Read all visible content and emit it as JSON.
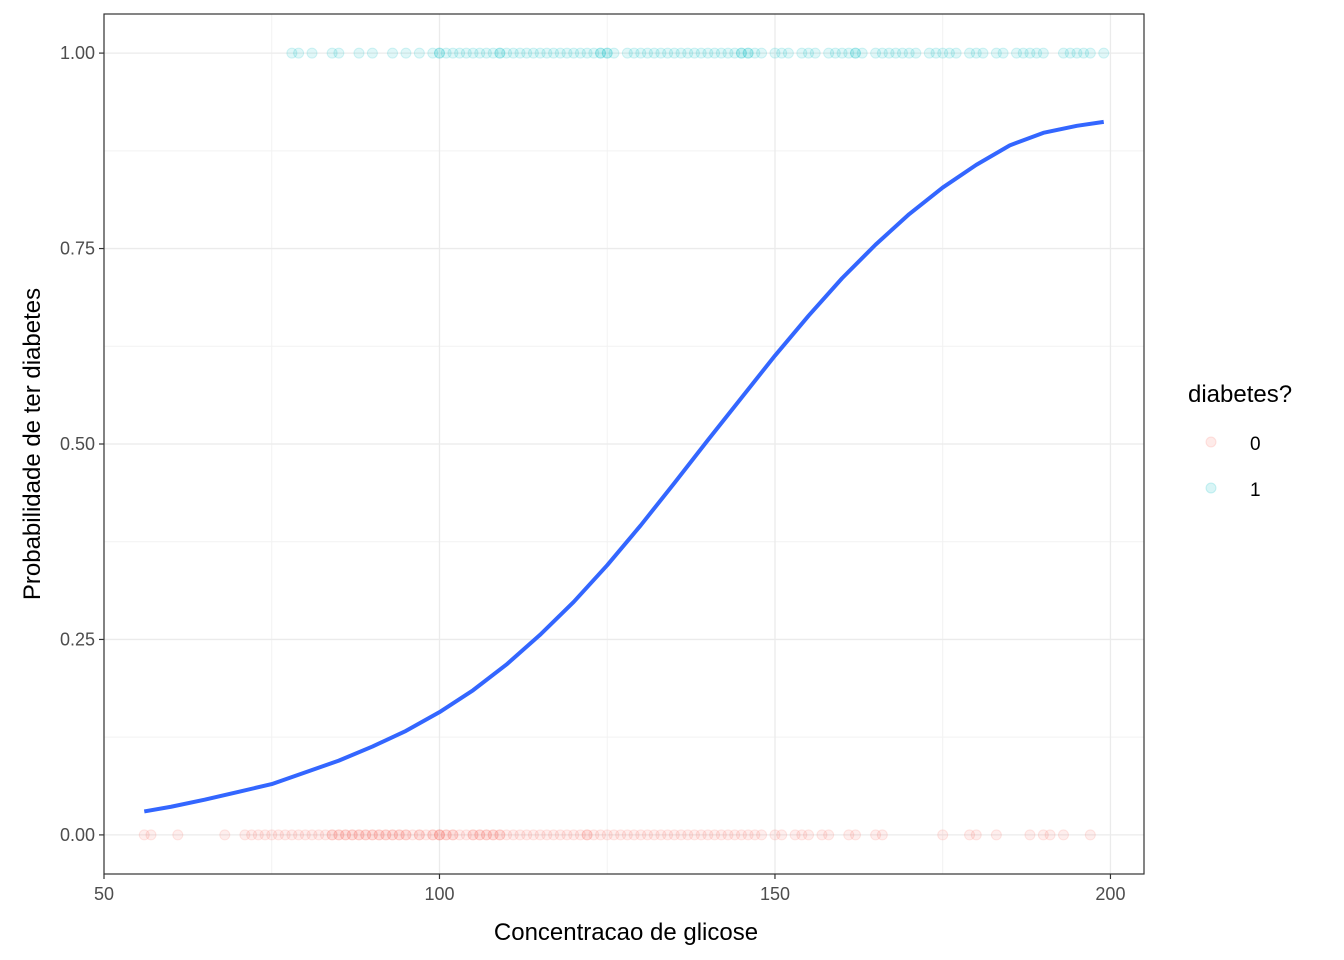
{
  "chart_data": {
    "type": "scatter",
    "title": "",
    "xlabel": "Concentracao de glicose",
    "ylabel": "Probabilidade de ter diabetes",
    "xlim": [
      50,
      205
    ],
    "ylim": [
      -0.05,
      1.05
    ],
    "x_ticks": [
      50,
      100,
      150,
      200
    ],
    "x_tick_labels": [
      "50",
      "100",
      "150",
      "200"
    ],
    "y_ticks": [
      0,
      0.25,
      0.5,
      0.75,
      1
    ],
    "y_tick_labels": [
      "0.00",
      "0.25",
      "0.50",
      "0.75",
      "1.00"
    ],
    "grid": true,
    "legend": {
      "title": "diabetes?",
      "position": "right",
      "entries": [
        {
          "label": "0",
          "color": "#F8766D"
        },
        {
          "label": "1",
          "color": "#00BFC4"
        }
      ]
    },
    "series": [
      {
        "label": "0",
        "color": "#F8766D",
        "opacity": 0.12,
        "y": 0,
        "x": [
          56,
          57,
          61,
          68,
          71,
          72,
          73,
          74,
          75,
          76,
          77,
          78,
          79,
          80,
          81,
          82,
          83,
          84,
          84,
          85,
          85,
          86,
          86,
          87,
          87,
          88,
          88,
          89,
          89,
          90,
          90,
          91,
          91,
          92,
          92,
          93,
          93,
          94,
          94,
          95,
          95,
          96,
          97,
          97,
          98,
          99,
          99,
          100,
          100,
          100,
          101,
          101,
          102,
          102,
          103,
          104,
          105,
          105,
          106,
          106,
          107,
          107,
          108,
          108,
          109,
          109,
          110,
          111,
          112,
          113,
          114,
          115,
          116,
          117,
          118,
          119,
          120,
          121,
          122,
          122,
          123,
          124,
          125,
          126,
          127,
          128,
          129,
          130,
          131,
          132,
          133,
          134,
          135,
          136,
          137,
          138,
          139,
          140,
          141,
          142,
          143,
          144,
          145,
          146,
          147,
          148,
          150,
          151,
          153,
          154,
          155,
          157,
          158,
          161,
          162,
          165,
          166,
          175,
          179,
          180,
          183,
          188,
          190,
          191,
          193,
          197
        ]
      },
      {
        "label": "1",
        "color": "#00BFC4",
        "opacity": 0.12,
        "y": 1,
        "x": [
          78,
          79,
          81,
          84,
          85,
          88,
          90,
          93,
          95,
          97,
          99,
          100,
          100,
          101,
          102,
          103,
          104,
          105,
          106,
          107,
          108,
          109,
          109,
          110,
          111,
          112,
          113,
          114,
          115,
          116,
          117,
          118,
          119,
          120,
          121,
          122,
          123,
          124,
          124,
          125,
          125,
          126,
          128,
          129,
          130,
          131,
          132,
          133,
          134,
          135,
          136,
          137,
          138,
          139,
          140,
          141,
          142,
          143,
          144,
          145,
          145,
          146,
          146,
          147,
          148,
          150,
          151,
          152,
          154,
          155,
          156,
          158,
          159,
          160,
          161,
          162,
          162,
          163,
          165,
          166,
          167,
          168,
          169,
          170,
          171,
          173,
          174,
          175,
          176,
          177,
          179,
          180,
          181,
          183,
          184,
          186,
          187,
          188,
          189,
          190,
          193,
          194,
          195,
          196,
          197,
          199
        ]
      },
      {
        "label": "fit",
        "type": "line",
        "color": "#3366FF",
        "x": [
          56,
          60,
          65,
          70,
          75,
          80,
          85,
          90,
          95,
          100,
          105,
          110,
          115,
          120,
          125,
          130,
          135,
          140,
          145,
          150,
          155,
          160,
          165,
          170,
          175,
          180,
          185,
          190,
          195,
          199
        ],
        "y": [
          0.03,
          0.036,
          0.045,
          0.055,
          0.065,
          0.08,
          0.095,
          0.113,
          0.133,
          0.157,
          0.185,
          0.218,
          0.256,
          0.298,
          0.345,
          0.396,
          0.45,
          0.505,
          0.559,
          0.613,
          0.664,
          0.712,
          0.755,
          0.794,
          0.828,
          0.857,
          0.882,
          0.898,
          0.907,
          0.912
        ]
      }
    ]
  }
}
